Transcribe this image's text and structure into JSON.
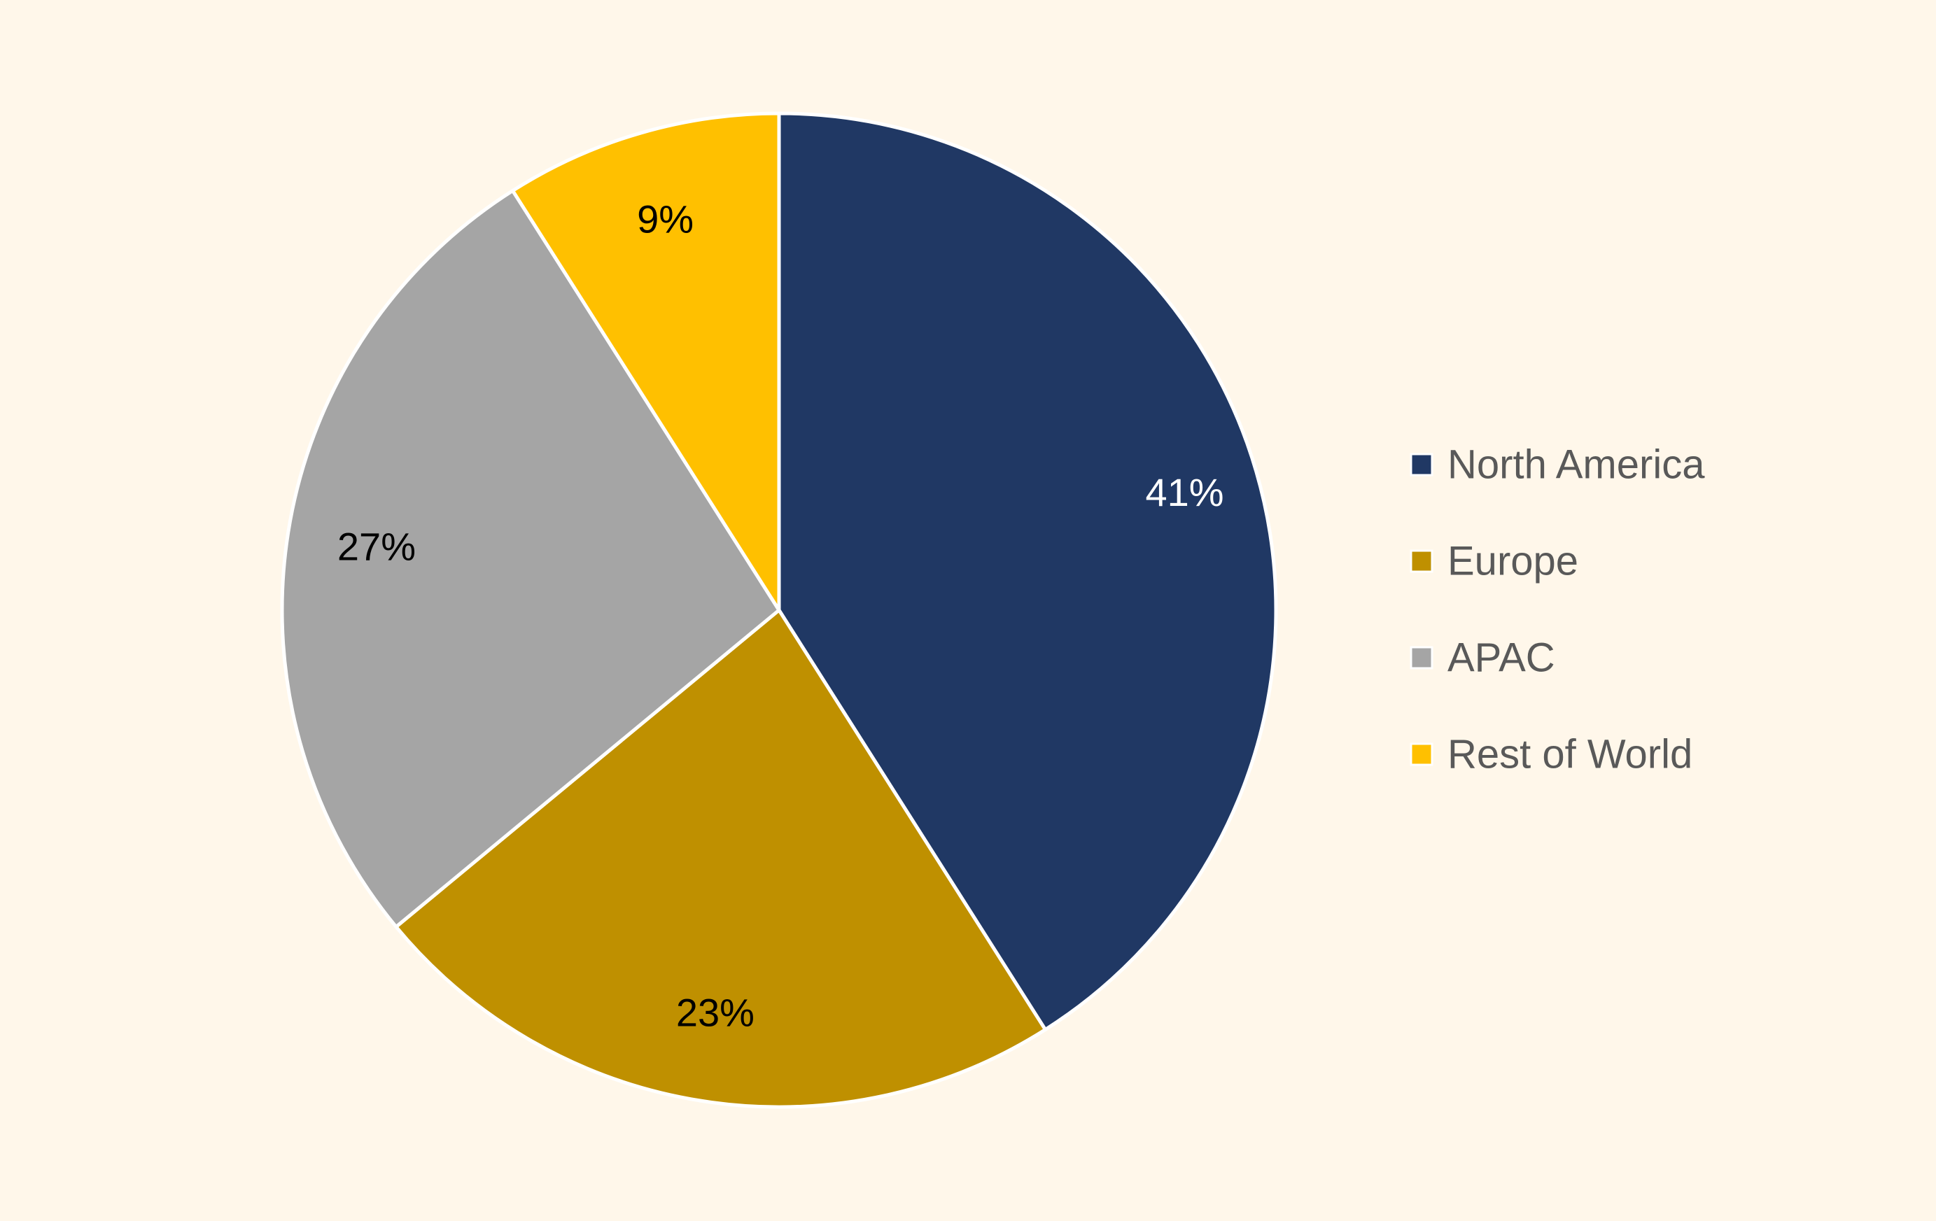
{
  "chart_data": {
    "type": "pie",
    "title": "",
    "start_angle_deg": 0,
    "direction": "clockwise",
    "legend_position": "right",
    "categories": [
      "North America",
      "Europe",
      "APAC",
      "Rest of World"
    ],
    "values": [
      41,
      23,
      27,
      9
    ],
    "data_labels": [
      "41%",
      "23%",
      "27%",
      "9%"
    ],
    "colors": [
      "#203864",
      "#BF9000",
      "#A5A5A5",
      "#FFC000"
    ],
    "label_colors": [
      "#FFFFFF",
      "#000000",
      "#000000",
      "#000000"
    ]
  },
  "background_color": "#FFF7EA",
  "legend_text_color": "#595959",
  "slice_border_color": "#FFFFFF"
}
